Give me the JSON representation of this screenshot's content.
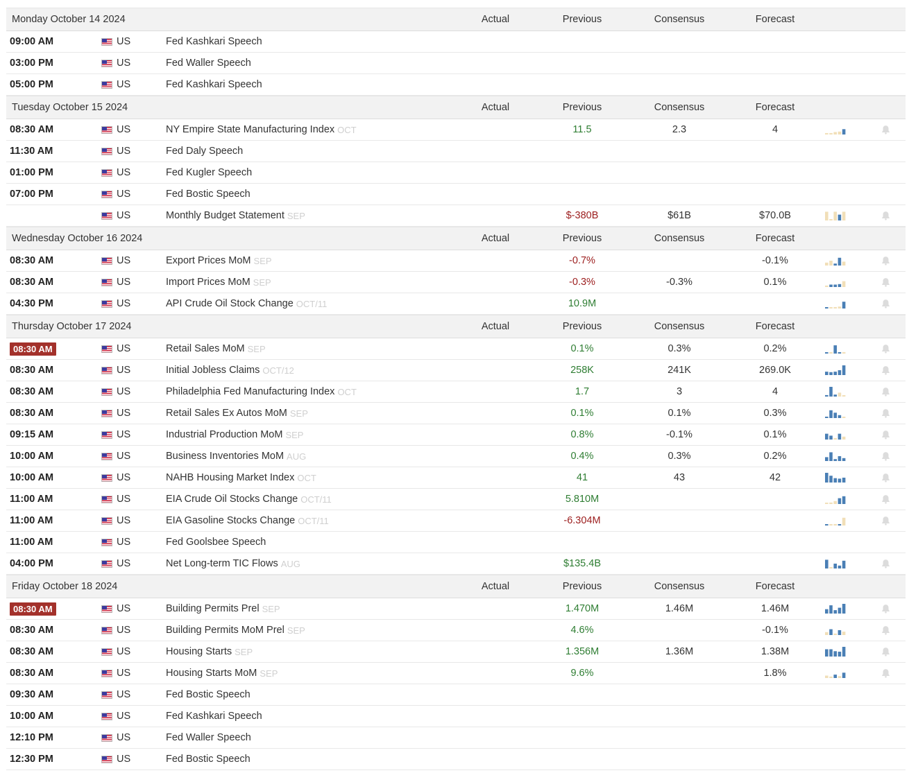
{
  "columns": {
    "actual": "Actual",
    "previous": "Previous",
    "consensus": "Consensus",
    "forecast": "Forecast"
  },
  "colors": {
    "blue": "#4a7fb5",
    "tan": "#f1dfb8",
    "highlight": "#a3312b",
    "pos": "#2e7d32",
    "neg": "#9b1c1c"
  },
  "days": [
    {
      "date": "Monday October 14 2024",
      "events": [
        {
          "time": "09:00 AM",
          "country": "US",
          "event": "Fed Kashkari Speech"
        },
        {
          "time": "03:00 PM",
          "country": "US",
          "event": "Fed Waller Speech"
        },
        {
          "time": "05:00 PM",
          "country": "US",
          "event": "Fed Kashkari Speech"
        }
      ]
    },
    {
      "date": "Tuesday October 15 2024",
      "events": [
        {
          "time": "08:30 AM",
          "country": "US",
          "event": "NY Empire State Manufacturing Index",
          "ref": "OCT",
          "previous": "11.5",
          "prev_tone": "pos",
          "consensus": "2.3",
          "forecast": "4",
          "spark": [
            0.15,
            0.15,
            0.25,
            0.3,
            0.55
          ],
          "spark_colors": [
            "tan",
            "tan",
            "tan",
            "tan",
            "blue"
          ],
          "bell": true
        },
        {
          "time": "11:30 AM",
          "country": "US",
          "event": "Fed Daly Speech"
        },
        {
          "time": "01:00 PM",
          "country": "US",
          "event": "Fed Kugler Speech"
        },
        {
          "time": "07:00 PM",
          "country": "US",
          "event": "Fed Bostic Speech"
        },
        {
          "time": "",
          "country": "US",
          "event": "Monthly Budget Statement",
          "ref": "SEP",
          "previous": "$-380B",
          "prev_tone": "neg",
          "consensus": "$61B",
          "forecast": "$70.0B",
          "spark": [
            0.9,
            0.1,
            0.9,
            0.6,
            0.9
          ],
          "spark_colors": [
            "tan",
            "tan",
            "tan",
            "blue",
            "tan"
          ],
          "bell": true
        }
      ]
    },
    {
      "date": "Wednesday October 16 2024",
      "events": [
        {
          "time": "08:30 AM",
          "country": "US",
          "event": "Export Prices MoM",
          "ref": "SEP",
          "previous": "-0.7%",
          "prev_tone": "neg",
          "consensus": "",
          "forecast": "-0.1%",
          "spark": [
            0.3,
            0.5,
            0.2,
            0.8,
            0.4
          ],
          "spark_colors": [
            "tan",
            "tan",
            "blue",
            "blue",
            "tan"
          ],
          "bell": true
        },
        {
          "time": "08:30 AM",
          "country": "US",
          "event": "Import Prices MoM",
          "ref": "SEP",
          "previous": "-0.3%",
          "prev_tone": "neg",
          "consensus": "-0.3%",
          "forecast": "0.1%",
          "spark": [
            0.15,
            0.25,
            0.25,
            0.3,
            0.6
          ],
          "spark_colors": [
            "tan",
            "blue",
            "blue",
            "blue",
            "tan"
          ],
          "bell": true
        },
        {
          "time": "04:30 PM",
          "country": "US",
          "event": "API Crude Oil Stock Change",
          "ref": "OCT/11",
          "previous": "10.9M",
          "prev_tone": "pos",
          "consensus": "",
          "forecast": "",
          "spark": [
            0.1,
            0.1,
            0.15,
            0.2,
            0.7
          ],
          "spark_colors": [
            "blue",
            "tan",
            "tan",
            "tan",
            "blue"
          ],
          "bell": true
        }
      ]
    },
    {
      "date": "Thursday October 17 2024",
      "events": [
        {
          "time": "08:30 AM",
          "highlight": true,
          "country": "US",
          "event": "Retail Sales MoM",
          "ref": "SEP",
          "previous": "0.1%",
          "prev_tone": "pos",
          "consensus": "0.3%",
          "forecast": "0.2%",
          "spark": [
            0.1,
            0.15,
            0.85,
            0.1,
            0.15
          ],
          "spark_colors": [
            "blue",
            "tan",
            "blue",
            "blue",
            "tan"
          ],
          "bell": true
        },
        {
          "time": "08:30 AM",
          "country": "US",
          "event": "Initial Jobless Claims",
          "ref": "OCT/12",
          "previous": "258K",
          "prev_tone": "pos",
          "consensus": "241K",
          "forecast": "269.0K",
          "spark": [
            0.35,
            0.3,
            0.35,
            0.5,
            1.0
          ],
          "spark_colors": [
            "blue",
            "blue",
            "blue",
            "blue",
            "blue"
          ],
          "bell": true
        },
        {
          "time": "08:30 AM",
          "country": "US",
          "event": "Philadelphia Fed Manufacturing Index",
          "ref": "OCT",
          "previous": "1.7",
          "prev_tone": "pos",
          "consensus": "3",
          "forecast": "4",
          "spark": [
            0.15,
            1.0,
            0.2,
            0.4,
            0.12
          ],
          "spark_colors": [
            "blue",
            "blue",
            "blue",
            "tan",
            "tan"
          ],
          "bell": true
        },
        {
          "time": "08:30 AM",
          "country": "US",
          "event": "Retail Sales Ex Autos MoM",
          "ref": "SEP",
          "previous": "0.1%",
          "prev_tone": "pos",
          "consensus": "0.1%",
          "forecast": "0.3%",
          "spark": [
            0,
            0.8,
            0.55,
            0.3,
            0
          ],
          "spark_colors": [
            "blue",
            "blue",
            "blue",
            "blue",
            "tan"
          ],
          "bell": true
        },
        {
          "time": "09:15 AM",
          "country": "US",
          "event": "Industrial Production MoM",
          "ref": "SEP",
          "previous": "0.8%",
          "prev_tone": "pos",
          "consensus": "-0.1%",
          "forecast": "0.1%",
          "spark": [
            0.6,
            0.4,
            0.15,
            0.6,
            0.3
          ],
          "spark_colors": [
            "blue",
            "blue",
            "tan",
            "blue",
            "tan"
          ],
          "bell": true
        },
        {
          "time": "10:00 AM",
          "country": "US",
          "event": "Business Inventories MoM",
          "ref": "AUG",
          "previous": "0.4%",
          "prev_tone": "pos",
          "consensus": "0.3%",
          "forecast": "0.2%",
          "spark": [
            0.4,
            0.9,
            0.2,
            0.5,
            0.3
          ],
          "spark_colors": [
            "blue",
            "blue",
            "blue",
            "blue",
            "blue"
          ],
          "bell": true
        },
        {
          "time": "10:00 AM",
          "country": "US",
          "event": "NAHB Housing Market Index",
          "ref": "OCT",
          "previous": "41",
          "prev_tone": "pos",
          "consensus": "43",
          "forecast": "42",
          "spark": [
            1.0,
            0.7,
            0.45,
            0.4,
            0.5
          ],
          "spark_colors": [
            "blue",
            "blue",
            "blue",
            "blue",
            "blue"
          ],
          "bell": true
        },
        {
          "time": "11:00 AM",
          "country": "US",
          "event": "EIA Crude Oil Stocks Change",
          "ref": "OCT/11",
          "previous": "5.810M",
          "prev_tone": "pos",
          "consensus": "",
          "forecast": "",
          "spark": [
            0.1,
            0.15,
            0.3,
            0.6,
            0.8
          ],
          "spark_colors": [
            "tan",
            "tan",
            "tan",
            "blue",
            "blue"
          ],
          "bell": true
        },
        {
          "time": "11:00 AM",
          "country": "US",
          "event": "EIA Gasoline Stocks Change",
          "ref": "OCT/11",
          "previous": "-6.304M",
          "prev_tone": "neg",
          "consensus": "",
          "forecast": "",
          "spark": [
            0.1,
            0.1,
            0.15,
            0.1,
            0.8
          ],
          "spark_colors": [
            "blue",
            "tan",
            "tan",
            "blue",
            "tan"
          ],
          "bell": true
        },
        {
          "time": "11:00 AM",
          "country": "US",
          "event": "Fed Goolsbee Speech"
        },
        {
          "time": "04:00 PM",
          "country": "US",
          "event": "Net Long-term TIC Flows",
          "ref": "AUG",
          "previous": "$135.4B",
          "prev_tone": "pos",
          "consensus": "",
          "forecast": "",
          "spark": [
            0.9,
            0.1,
            0.5,
            0.3,
            0.8
          ],
          "spark_colors": [
            "blue",
            "tan",
            "blue",
            "blue",
            "blue"
          ],
          "bell": true
        }
      ]
    },
    {
      "date": "Friday October 18 2024",
      "events": [
        {
          "time": "08:30 AM",
          "highlight": true,
          "country": "US",
          "event": "Building Permits Prel",
          "ref": "SEP",
          "previous": "1.470M",
          "prev_tone": "pos",
          "consensus": "1.46M",
          "forecast": "1.46M",
          "spark": [
            0.45,
            0.85,
            0.35,
            0.6,
            1.0
          ],
          "spark_colors": [
            "blue",
            "blue",
            "blue",
            "blue",
            "blue"
          ],
          "bell": true
        },
        {
          "time": "08:30 AM",
          "country": "US",
          "event": "Building Permits MoM Prel",
          "ref": "SEP",
          "previous": "4.6%",
          "prev_tone": "pos",
          "consensus": "",
          "forecast": "-0.1%",
          "spark": [
            0.3,
            0.6,
            0.15,
            0.5,
            0.35
          ],
          "spark_colors": [
            "tan",
            "blue",
            "tan",
            "blue",
            "tan"
          ],
          "bell": true
        },
        {
          "time": "08:30 AM",
          "country": "US",
          "event": "Housing Starts",
          "ref": "SEP",
          "previous": "1.356M",
          "prev_tone": "pos",
          "consensus": "1.36M",
          "forecast": "1.38M",
          "spark": [
            0.75,
            0.75,
            0.55,
            0.5,
            1.0
          ],
          "spark_colors": [
            "blue",
            "blue",
            "blue",
            "blue",
            "blue"
          ],
          "bell": true
        },
        {
          "time": "08:30 AM",
          "country": "US",
          "event": "Housing Starts MoM",
          "ref": "SEP",
          "previous": "9.6%",
          "prev_tone": "pos",
          "consensus": "",
          "forecast": "1.8%",
          "spark": [
            0.25,
            0.15,
            0.35,
            0.2,
            0.55
          ],
          "spark_colors": [
            "tan",
            "tan",
            "blue",
            "tan",
            "blue"
          ],
          "bell": true
        },
        {
          "time": "09:30 AM",
          "country": "US",
          "event": "Fed Bostic Speech"
        },
        {
          "time": "10:00 AM",
          "country": "US",
          "event": "Fed Kashkari Speech"
        },
        {
          "time": "12:10 PM",
          "country": "US",
          "event": "Fed Waller Speech"
        },
        {
          "time": "12:30 PM",
          "country": "US",
          "event": "Fed Bostic Speech"
        }
      ]
    }
  ]
}
